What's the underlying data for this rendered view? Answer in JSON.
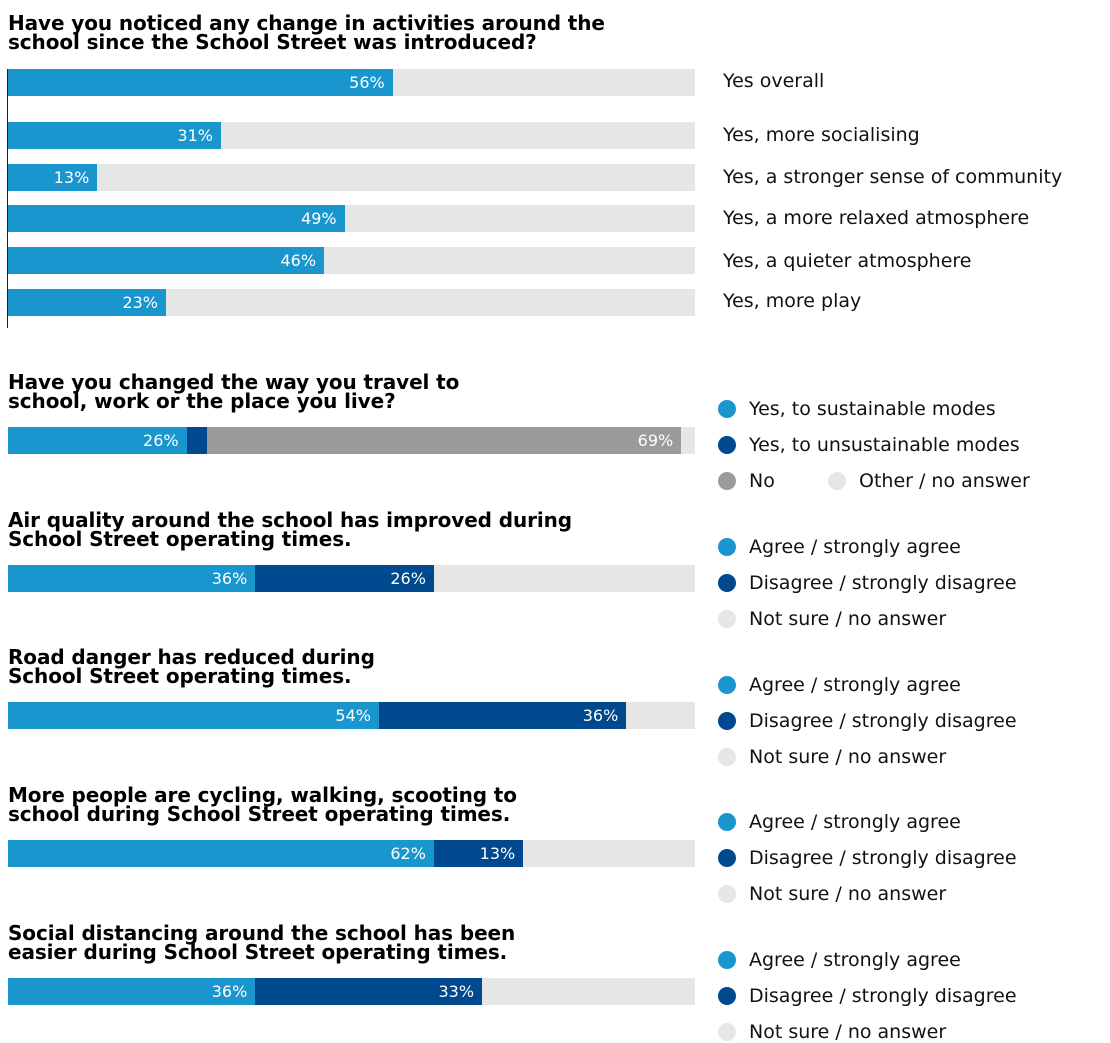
{
  "colors": {
    "sustainable": "#1a96cf",
    "unsustainable": "#00498f",
    "no": "#9b9b9b",
    "other": "#e6e6e6",
    "track": "#e6e6e6"
  },
  "chart_data": [
    {
      "type": "bar",
      "title": "Have you noticed any change in activities around the school since the School Street was introduced?",
      "title_lines": [
        "Have you noticed any change in activities around the",
        "school since the School Street was introduced?"
      ],
      "categories": [
        "Yes overall",
        "Yes, more socialising",
        "Yes, a stronger sense of community",
        "Yes, a more relaxed atmosphere",
        "Yes, a quieter atmosphere",
        "Yes, more play"
      ],
      "values": [
        56,
        31,
        13,
        49,
        46,
        23
      ],
      "value_labels": [
        "56%",
        "31%",
        "13%",
        "49%",
        "46%",
        "23%"
      ],
      "xlim": [
        0,
        100
      ]
    },
    {
      "type": "bar",
      "stacked": true,
      "title": "Have you changed the way you travel to school, work or the place you live?",
      "title_lines": [
        "Have you changed the way you travel to",
        "school, work or the place you live?"
      ],
      "series": [
        {
          "name": "Yes, to sustainable modes",
          "values": [
            26
          ],
          "label": "26%",
          "color": "#1a96cf"
        },
        {
          "name": "Yes, to unsustainable modes",
          "values": [
            3
          ],
          "label": "3%",
          "color": "#00498f"
        },
        {
          "name": "No",
          "values": [
            69
          ],
          "label": "69%",
          "color": "#9b9b9b"
        },
        {
          "name": "Other / no answer",
          "values": [
            2
          ],
          "label": "",
          "color": "#e6e6e6"
        }
      ],
      "xlim": [
        0,
        100
      ]
    },
    {
      "type": "bar",
      "stacked": true,
      "title": "Air quality around the school has improved during School Street operating times.",
      "title_lines": [
        "Air quality around the school has improved during",
        "School Street operating times."
      ],
      "series": [
        {
          "name": "Agree / strongly agree",
          "values": [
            36
          ],
          "label": "36%",
          "color": "#1a96cf"
        },
        {
          "name": "Disagree / strongly disagree",
          "values": [
            26
          ],
          "label": "26%",
          "color": "#00498f"
        },
        {
          "name": "Not sure / no answer",
          "values": [
            38
          ],
          "label": "",
          "color": "#e6e6e6"
        }
      ],
      "xlim": [
        0,
        100
      ]
    },
    {
      "type": "bar",
      "stacked": true,
      "title": "Road danger has reduced during School Street operating times.",
      "title_lines": [
        "Road danger has reduced during",
        "School Street operating times."
      ],
      "series": [
        {
          "name": "Agree / strongly agree",
          "values": [
            54
          ],
          "label": "54%",
          "color": "#1a96cf"
        },
        {
          "name": "Disagree / strongly disagree",
          "values": [
            36
          ],
          "label": "36%",
          "color": "#00498f"
        },
        {
          "name": "Not sure / no answer",
          "values": [
            10
          ],
          "label": "",
          "color": "#e6e6e6"
        }
      ],
      "xlim": [
        0,
        100
      ]
    },
    {
      "type": "bar",
      "stacked": true,
      "title": "More people are cycling, walking, scooting to school during School Street operating times.",
      "title_lines": [
        "More people are cycling, walking, scooting to",
        "school during School Street operating times."
      ],
      "series": [
        {
          "name": "Agree / strongly agree",
          "values": [
            62
          ],
          "label": "62%",
          "color": "#1a96cf"
        },
        {
          "name": "Disagree / strongly disagree",
          "values": [
            13
          ],
          "label": "13%",
          "color": "#00498f"
        },
        {
          "name": "Not sure / no answer",
          "values": [
            25
          ],
          "label": "",
          "color": "#e6e6e6"
        }
      ],
      "xlim": [
        0,
        100
      ]
    },
    {
      "type": "bar",
      "stacked": true,
      "title": "Social distancing around the school has been easier during School Street operating times.",
      "title_lines": [
        "Social distancing around the school has been",
        "easier during School Street operating times."
      ],
      "series": [
        {
          "name": "Agree / strongly agree",
          "values": [
            36
          ],
          "label": "36%",
          "color": "#1a96cf"
        },
        {
          "name": "Disagree / strongly disagree",
          "values": [
            33
          ],
          "label": "33%",
          "color": "#00498f"
        },
        {
          "name": "Not sure / no answer",
          "values": [
            31
          ],
          "label": "",
          "color": "#e6e6e6"
        }
      ],
      "xlim": [
        0,
        100
      ]
    }
  ]
}
